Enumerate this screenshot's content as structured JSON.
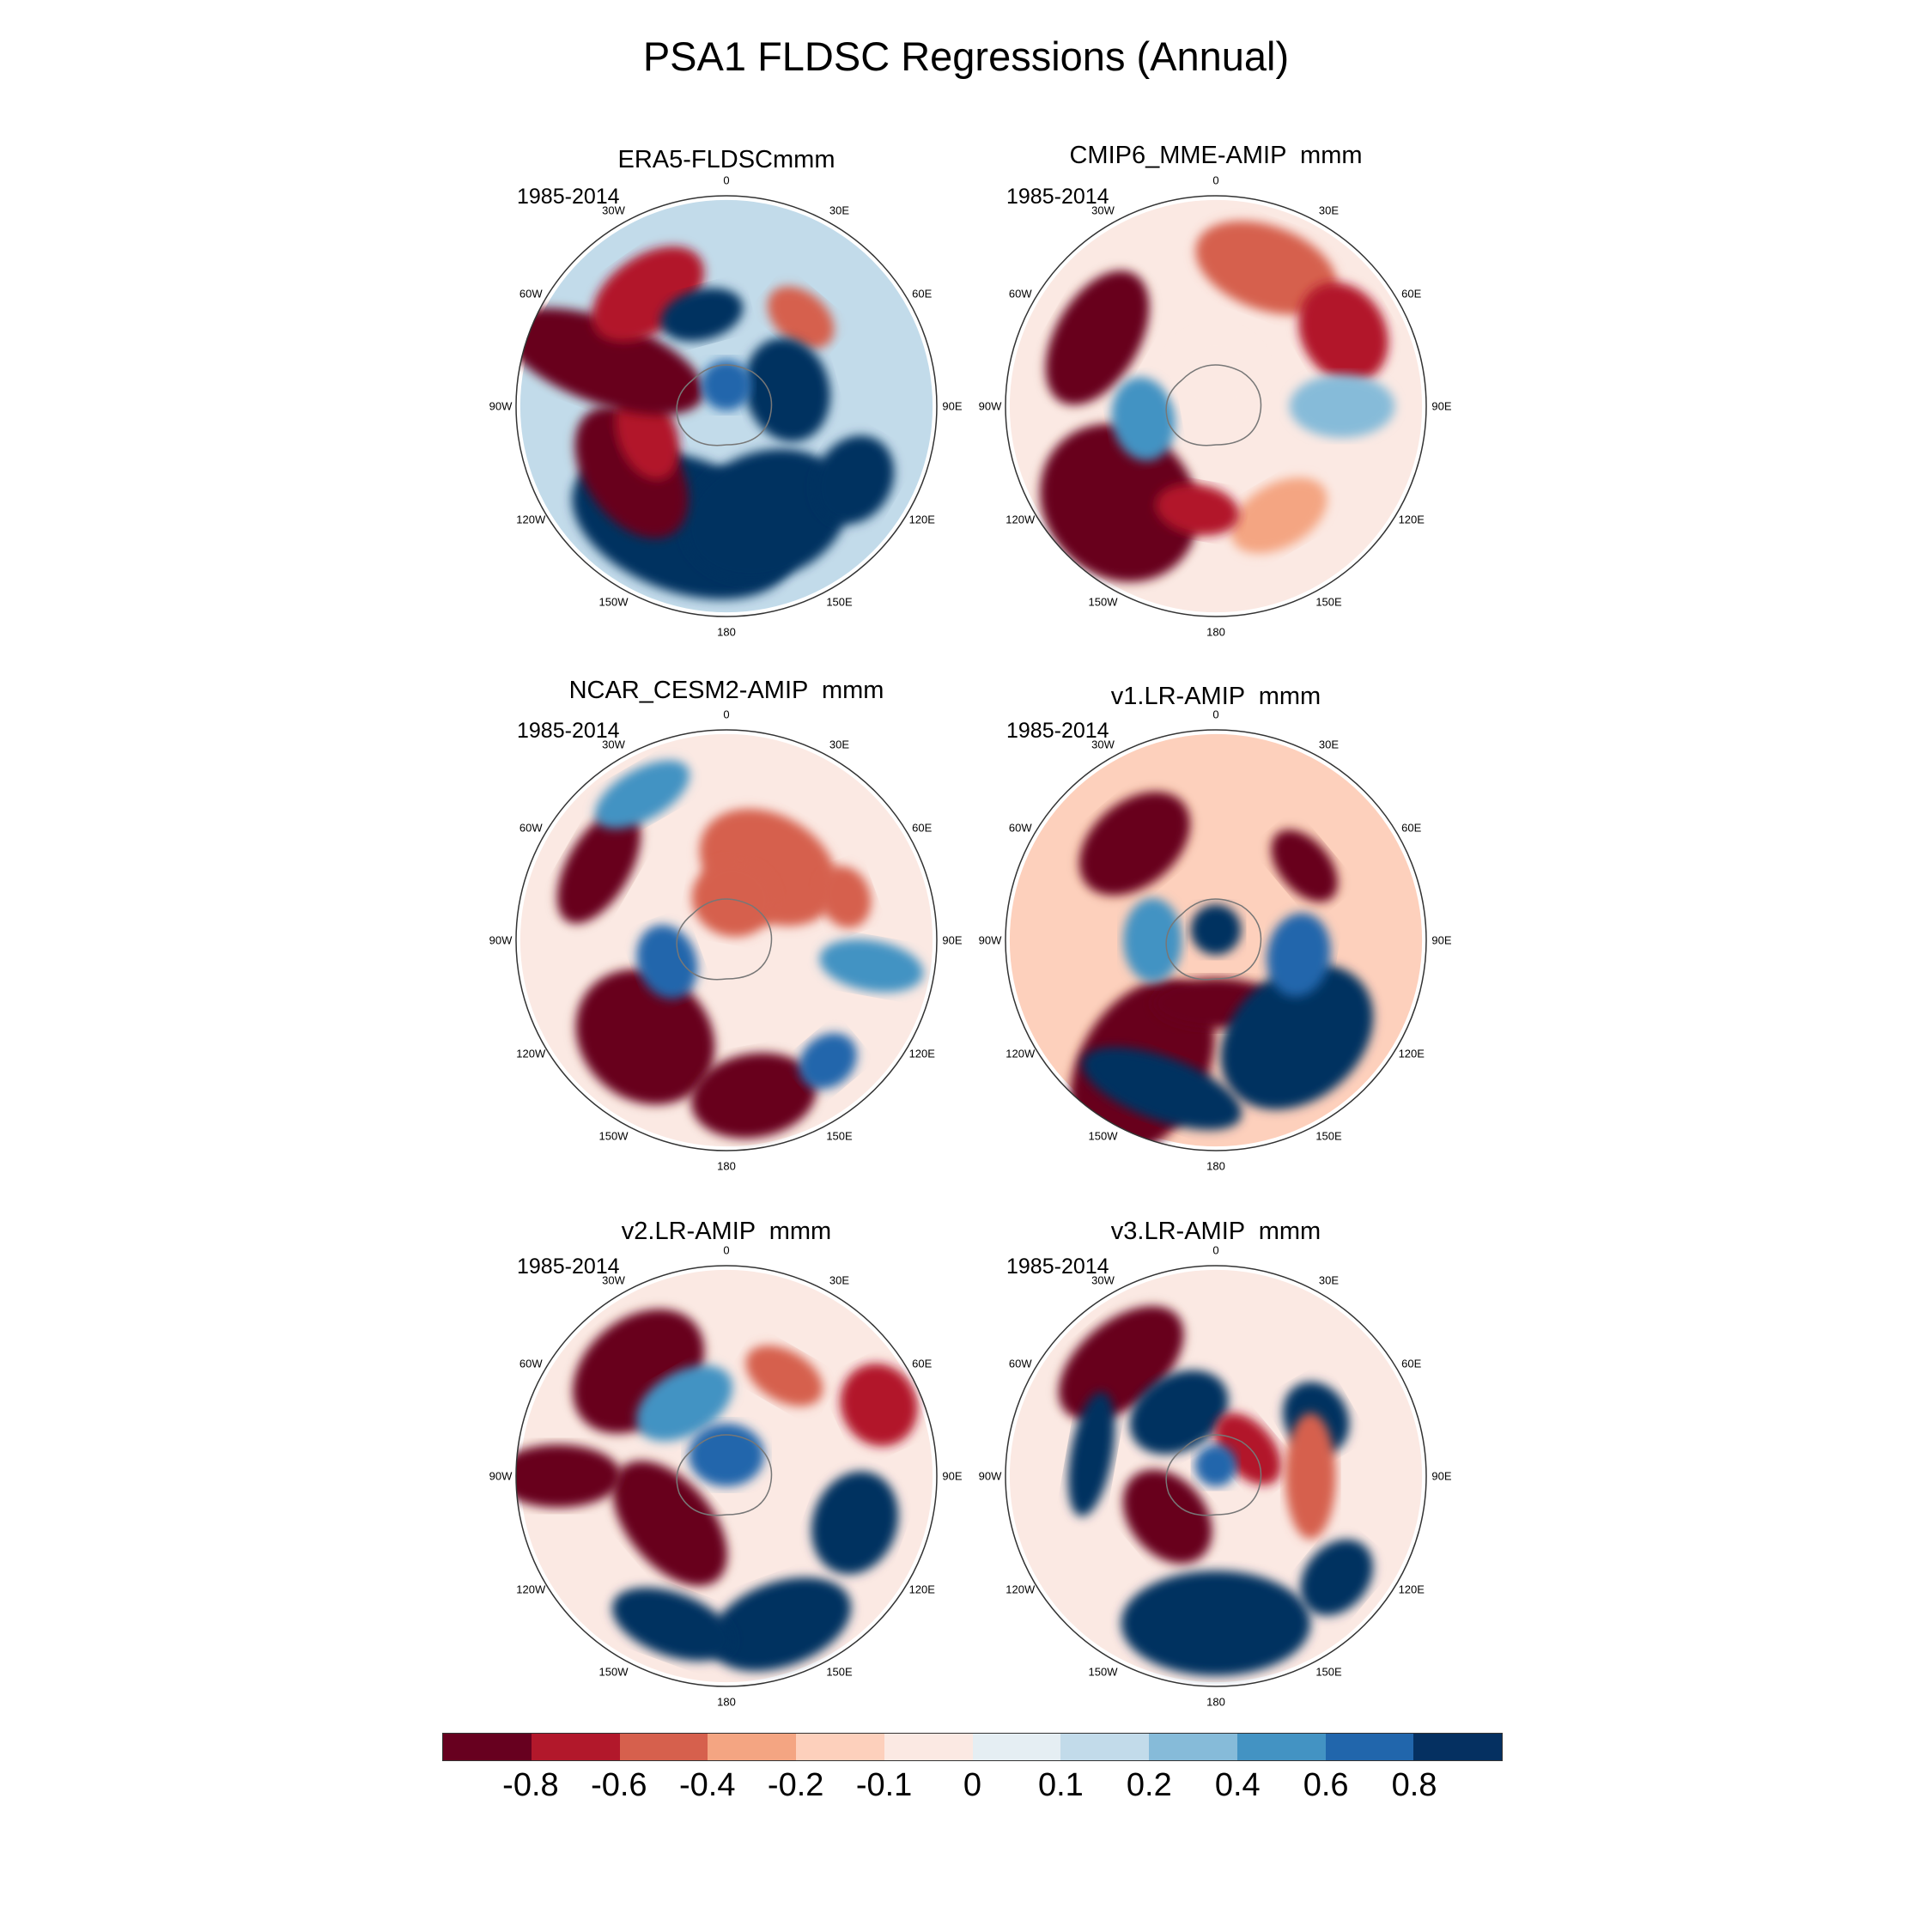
{
  "title": "PSA1 FLDSC Regressions (Annual)",
  "period": "1985-2014",
  "longitude_labels": [
    "0",
    "30E",
    "60E",
    "90E",
    "120E",
    "150E",
    "180",
    "150W",
    "120W",
    "90W",
    "60W",
    "30W"
  ],
  "panels": [
    {
      "title": "ERA5-FLDSCmmm"
    },
    {
      "title": "CMIP6_MME-AMIP  mmm"
    },
    {
      "title": "NCAR_CESM2-AMIP  mmm"
    },
    {
      "title": "v1.LR-AMIP  mmm"
    },
    {
      "title": "v2.LR-AMIP  mmm"
    },
    {
      "title": "v3.LR-AMIP  mmm"
    }
  ],
  "colorbar": {
    "colors": [
      "#67001f",
      "#b2182b",
      "#d6604d",
      "#f4a582",
      "#fdd0bc",
      "#fbe9e3",
      "#e5eef3",
      "#c2dbea",
      "#86bbd9",
      "#4393c3",
      "#2166ac",
      "#053061"
    ],
    "labels": [
      "-0.8",
      "-0.6",
      "-0.4",
      "-0.2",
      "-0.1",
      "0",
      "0.1",
      "0.2",
      "0.4",
      "0.6",
      "0.8"
    ]
  }
}
